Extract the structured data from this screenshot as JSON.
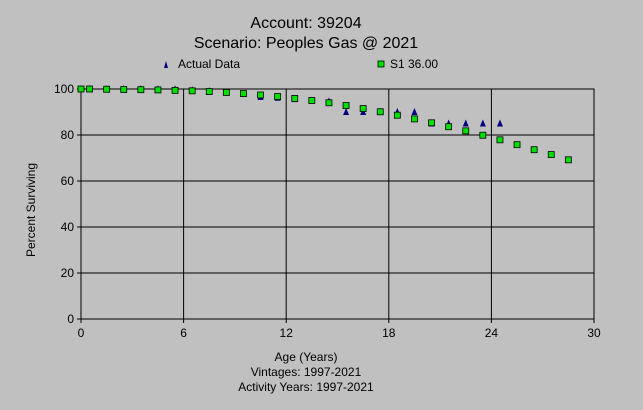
{
  "chart_data": {
    "type": "scatter",
    "title": "Account: 39204",
    "subtitle": "Scenario: Peoples Gas @ 2021",
    "xlabel": "Age (Years)",
    "ylabel": "Percent Surviving",
    "footnotes": [
      "Vintages: 1997-2021",
      "Activity Years: 1997-2021"
    ],
    "xlim": [
      0,
      30
    ],
    "ylim": [
      0,
      100
    ],
    "x_ticks": [
      0,
      6,
      12,
      18,
      24,
      30
    ],
    "y_ticks": [
      0,
      20,
      40,
      60,
      80,
      100
    ],
    "grid": true,
    "legend_position": "top",
    "series": [
      {
        "name": "Actual Data",
        "marker": "triangle",
        "color": "#000080",
        "points": [
          [
            0,
            100
          ],
          [
            0.5,
            100
          ],
          [
            1.5,
            100
          ],
          [
            2.5,
            100
          ],
          [
            3.5,
            100
          ],
          [
            4.5,
            99.9
          ],
          [
            5.5,
            99.9
          ],
          [
            6.5,
            99.5
          ],
          [
            7.5,
            99.1
          ],
          [
            8.5,
            98.5
          ],
          [
            9.5,
            97.8
          ],
          [
            10.5,
            96.5
          ],
          [
            11.5,
            96.2
          ],
          [
            12.5,
            95.6
          ],
          [
            13.5,
            95.0
          ],
          [
            14.5,
            94.6
          ],
          [
            15.5,
            90.0
          ],
          [
            16.5,
            90.0
          ],
          [
            17.5,
            90.0
          ],
          [
            18.5,
            90.0
          ],
          [
            19.5,
            90.0
          ],
          [
            20.5,
            85.0
          ],
          [
            21.5,
            85.0
          ],
          [
            22.5,
            85.0
          ],
          [
            23.5,
            85.0
          ],
          [
            24.5,
            85.0
          ]
        ]
      },
      {
        "name": "S1 36.00",
        "marker": "square",
        "color": "#00e000",
        "points": [
          [
            0,
            100
          ],
          [
            0.5,
            100
          ],
          [
            1.5,
            99.9
          ],
          [
            2.5,
            99.8
          ],
          [
            3.5,
            99.7
          ],
          [
            4.5,
            99.6
          ],
          [
            5.5,
            99.4
          ],
          [
            6.5,
            99.2
          ],
          [
            7.5,
            98.9
          ],
          [
            8.5,
            98.5
          ],
          [
            9.5,
            98.0
          ],
          [
            10.5,
            97.4
          ],
          [
            11.5,
            96.7
          ],
          [
            12.5,
            95.9
          ],
          [
            13.5,
            95.0
          ],
          [
            14.5,
            94.0
          ],
          [
            15.5,
            92.8
          ],
          [
            16.5,
            91.5
          ],
          [
            17.5,
            90.1
          ],
          [
            18.5,
            88.6
          ],
          [
            19.5,
            87.0
          ],
          [
            20.5,
            85.3
          ],
          [
            21.5,
            83.6
          ],
          [
            22.5,
            81.8
          ],
          [
            23.5,
            79.9
          ],
          [
            24.5,
            77.9
          ],
          [
            25.5,
            75.8
          ],
          [
            26.5,
            73.6
          ],
          [
            27.5,
            71.5
          ],
          [
            28.5,
            69.2
          ]
        ]
      }
    ]
  }
}
